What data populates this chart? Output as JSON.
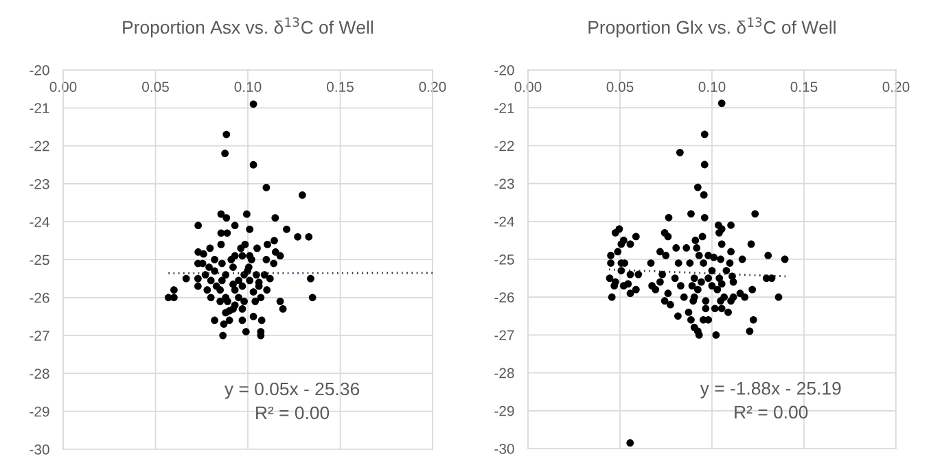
{
  "chart_data": [
    {
      "type": "scatter",
      "title": "Proportion Asx vs. δ$^{13}$C of Well",
      "xlim": [
        0,
        0.2
      ],
      "ylim": [
        -30,
        -20
      ],
      "xticks": [
        {
          "value": 0,
          "label": "0.00"
        },
        {
          "value": 0.05,
          "label": "0.05"
        },
        {
          "value": 0.1,
          "label": "0.10"
        },
        {
          "value": 0.15,
          "label": "0.15"
        },
        {
          "value": 0.2,
          "label": "0.20"
        }
      ],
      "yticks": [
        -30,
        -29,
        -28,
        -27,
        -26,
        -25,
        -24,
        -23,
        -22,
        -21,
        -20
      ],
      "grid": true,
      "marker": "circle",
      "annotations": [
        "y = 0.05x - 25.36",
        "R² = 0.00"
      ],
      "series": [
        {
          "type": "scatter",
          "color": "#000000",
          "x": [
            0.103,
            0.0884,
            0.0876,
            0.103,
            0.11,
            0.1295,
            0.0855,
            0.0994,
            0.0884,
            0.1148,
            0.0731,
            0.093,
            0.101,
            0.121,
            0.0855,
            0.0888,
            0.127,
            0.133,
            0.0855,
            0.0985,
            0.1106,
            0.1143,
            0.0731,
            0.0795,
            0.0962,
            0.105,
            0.076,
            0.093,
            0.097,
            0.101,
            0.115,
            0.1175,
            0.073,
            0.0755,
            0.082,
            0.086,
            0.091,
            0.102,
            0.11,
            0.114,
            0.079,
            0.092,
            0.1005,
            0.082,
            0.0998,
            0.0666,
            0.073,
            0.077,
            0.088,
            0.098,
            0.1046,
            0.109,
            0.112,
            0.134,
            0.08,
            0.086,
            0.095,
            0.101,
            0.106,
            0.073,
            0.083,
            0.092,
            0.097,
            0.106,
            0.06,
            0.078,
            0.085,
            0.093,
            0.103,
            0.1103,
            0.057,
            0.06,
            0.08,
            0.088,
            0.095,
            0.107,
            0.135,
            0.085,
            0.089,
            0.098,
            0.104,
            0.1175,
            0.093,
            0.092,
            0.097,
            0.119,
            0.088,
            0.09,
            0.103,
            0.082,
            0.09,
            0.097,
            0.1075,
            0.087,
            0.099,
            0.107,
            0.0865,
            0.107
          ],
          "values": [
            -20.9,
            -21.7,
            -22.2,
            -22.5,
            -23.1,
            -23.3,
            -23.8,
            -23.8,
            -23.9,
            -23.9,
            -24.1,
            -24.1,
            -24.2,
            -24.2,
            -24.3,
            -24.3,
            -24.4,
            -24.4,
            -24.6,
            -24.6,
            -24.6,
            -24.5,
            -24.8,
            -24.7,
            -24.7,
            -24.7,
            -24.85,
            -24.9,
            -24.9,
            -24.9,
            -24.8,
            -24.9,
            -25.1,
            -25.1,
            -25.0,
            -25.1,
            -25.0,
            -25.0,
            -25.0,
            -25.1,
            -25.2,
            -25.2,
            -25.2,
            -25.3,
            -25.3,
            -25.5,
            -25.5,
            -25.4,
            -25.4,
            -25.4,
            -25.4,
            -25.4,
            -25.5,
            -25.5,
            -25.55,
            -25.55,
            -25.55,
            -25.55,
            -25.6,
            -25.7,
            -25.7,
            -25.65,
            -25.7,
            -25.7,
            -25.8,
            -25.8,
            -25.8,
            -25.8,
            -25.85,
            -25.8,
            -26.0,
            -26.0,
            -26.0,
            -26.0,
            -26.0,
            -26.0,
            -26.0,
            -26.1,
            -26.1,
            -26.1,
            -26.1,
            -26.1,
            -26.2,
            -26.3,
            -26.3,
            -26.3,
            -26.4,
            -26.35,
            -26.5,
            -26.6,
            -26.6,
            -26.6,
            -26.6,
            -26.7,
            -26.9,
            -26.9,
            -27.0,
            -27.0
          ]
        },
        {
          "type": "line",
          "color": "#1f2a44",
          "line_style": "dotted",
          "marker": "none",
          "x": [
            0.057,
            0.2
          ],
          "values": [
            -25.36,
            -25.35
          ]
        }
      ]
    },
    {
      "type": "scatter",
      "title": "Proportion Glx vs. δ$^{13}$C of Well",
      "xlim": [
        0,
        0.2
      ],
      "ylim": [
        -30,
        -20
      ],
      "xticks": [
        {
          "value": 0,
          "label": "0.00"
        },
        {
          "value": 0.05,
          "label": "0.05"
        },
        {
          "value": 0.1,
          "label": "0.10"
        },
        {
          "value": 0.15,
          "label": "0.15"
        },
        {
          "value": 0.2,
          "label": "0.20"
        }
      ],
      "yticks": [
        -30,
        -29,
        -28,
        -27,
        -26,
        -25,
        -24,
        -23,
        -22,
        -21,
        -20
      ],
      "grid": true,
      "marker": "circle",
      "annotations": [
        "y = -1.88x - 25.19",
        "R² = 0.00"
      ],
      "series": [
        {
          "type": "scatter",
          "color": "#000000",
          "x": [
            0.1053,
            0.096,
            0.0826,
            0.096,
            0.0923,
            0.0956,
            0.0886,
            0.1234,
            0.0765,
            0.096,
            0.1035,
            0.1103,
            0.1053,
            0.0496,
            0.0475,
            0.0743,
            0.1039,
            0.0761,
            0.0587,
            0.0948,
            0.052,
            0.091,
            0.0507,
            0.0556,
            0.1053,
            0.1213,
            0.0805,
            0.0861,
            0.0917,
            0.0718,
            0.1103,
            0.045,
            0.0488,
            0.0749,
            0.093,
            0.098,
            0.101,
            0.1305,
            0.1396,
            0.1165,
            0.1047,
            0.045,
            0.0507,
            0.0525,
            0.0668,
            0.0818,
            0.088,
            0.0954,
            0.1097,
            0.0507,
            0.0556,
            0.06,
            0.073,
            0.1,
            0.1078,
            0.0444,
            0.0799,
            0.0904,
            0.098,
            0.104,
            0.111,
            0.1296,
            0.1325,
            0.0475,
            0.0544,
            0.0718,
            0.0942,
            0.1053,
            0.1116,
            0.0469,
            0.052,
            0.0674,
            0.083,
            0.0892,
            0.1,
            0.0587,
            0.0693,
            0.0923,
            0.1029,
            0.1219,
            0.0556,
            0.0761,
            0.1153,
            0.0456,
            0.0848,
            0.0904,
            0.1066,
            0.1116,
            0.1178,
            0.1362,
            0.0743,
            0.0898,
            0.0966,
            0.1047,
            0.0774,
            0.1103,
            0.0966,
            0.1016,
            0.1053,
            0.0815,
            0.1088,
            0.0873,
            0.0953,
            0.098,
            0.0886,
            0.1225,
            0.0904,
            0.0923,
            0.1205,
            0.093,
            0.1022,
            0.0555
          ],
          "values": [
            -20.88,
            -21.7,
            -22.18,
            -22.5,
            -23.1,
            -23.3,
            -23.8,
            -23.8,
            -23.9,
            -23.9,
            -24.1,
            -24.1,
            -24.2,
            -24.2,
            -24.3,
            -24.3,
            -24.3,
            -24.4,
            -24.4,
            -24.4,
            -24.5,
            -24.5,
            -24.6,
            -24.6,
            -24.6,
            -24.6,
            -24.7,
            -24.7,
            -24.7,
            -24.8,
            -24.8,
            -24.9,
            -24.8,
            -24.9,
            -24.9,
            -24.9,
            -24.95,
            -24.9,
            -25.0,
            -25.0,
            -25.0,
            -25.1,
            -25.1,
            -25.1,
            -25.1,
            -25.1,
            -25.1,
            -25.1,
            -25.1,
            -25.3,
            -25.4,
            -25.4,
            -25.4,
            -25.3,
            -25.3,
            -25.5,
            -25.5,
            -25.5,
            -25.5,
            -25.5,
            -25.45,
            -25.5,
            -25.5,
            -25.6,
            -25.65,
            -25.6,
            -25.6,
            -25.65,
            -25.6,
            -25.7,
            -25.7,
            -25.7,
            -25.7,
            -25.7,
            -25.7,
            -25.8,
            -25.8,
            -25.8,
            -25.8,
            -25.8,
            -25.9,
            -25.9,
            -25.9,
            -26.0,
            -26.0,
            -26.0,
            -26.0,
            -26.0,
            -26.0,
            -26.0,
            -26.1,
            -26.1,
            -26.1,
            -26.1,
            -26.2,
            -26.1,
            -26.3,
            -26.3,
            -26.3,
            -26.5,
            -26.4,
            -26.4,
            -26.6,
            -26.6,
            -26.6,
            -26.6,
            -26.8,
            -26.9,
            -26.9,
            -27.0,
            -27.0,
            -29.85
          ]
        },
        {
          "type": "line",
          "color": "#1f2a44",
          "line_style": "dotted",
          "marker": "none",
          "x": [
            0.044,
            0.14
          ],
          "values": [
            -25.27,
            -25.45
          ]
        }
      ]
    }
  ]
}
